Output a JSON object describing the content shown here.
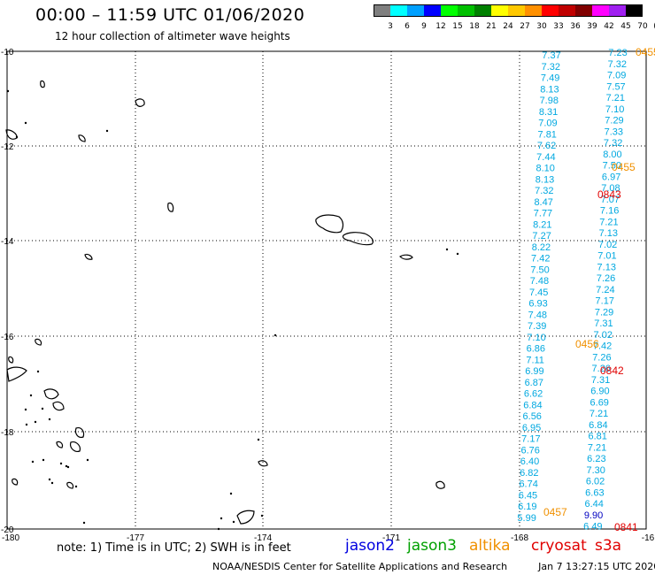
{
  "header": {
    "title": "00:00 – 11:59 UTC 01/06/2020",
    "subtitle": "12 hour collection of altimeter wave heights"
  },
  "color_scale": {
    "swatches": [
      "#7f7f7f",
      "#00ffff",
      "#00a0ff",
      "#0000ff",
      "#00ff00",
      "#00c000",
      "#008000",
      "#ffff00",
      "#ffc800",
      "#ff9000",
      "#ff0000",
      "#c00000",
      "#800000",
      "#ff00ff",
      "#a020f0",
      "#000000"
    ],
    "labels": [
      "3",
      "6",
      "9",
      "12",
      "15",
      "18",
      "21",
      "24",
      "27",
      "30",
      "33",
      "36",
      "39",
      "42",
      "45",
      "70",
      "(ft)"
    ]
  },
  "map": {
    "lon_labels": [
      "-180",
      "-177",
      "-174",
      "-171",
      "-168",
      "-16"
    ],
    "lat_labels": [
      "-10",
      "-12",
      "-14",
      "-16",
      "-18",
      "-20"
    ],
    "colors": {
      "cyan": "#00a8e0",
      "red": "#e00000",
      "orange": "#f09000",
      "green": "#40c040",
      "blue": "#0000c0"
    },
    "tracks": [
      {
        "name": "left",
        "color": "cyan",
        "values": [
          "7.37",
          "7.32",
          "7.49",
          "8.13",
          "7.98",
          "8.31",
          "7.09",
          "7.81",
          "7.62",
          "7.44",
          "8.10",
          "8.13",
          "7.32",
          "8.47",
          "7.77",
          "8.21",
          "7.27",
          "8.22",
          "7.42",
          "7.50",
          "7.48",
          "7.45",
          "6.93",
          "7.48",
          "7.39",
          "7.10",
          "6.86",
          "7.11",
          "6.99",
          "6.87",
          "6.62",
          "6.84",
          "6.56",
          "6.95",
          "7.17",
          "6.76",
          "6.40",
          "6.82",
          "6.74",
          "6.45",
          "6.19",
          "5.99"
        ]
      },
      {
        "name": "right",
        "color": "cyan",
        "values": [
          "7.23",
          "7.32",
          "7.09",
          "7.57",
          "7.21",
          "7.10",
          "7.29",
          "7.33",
          "7.32",
          "8.00",
          "7.50",
          "6.97",
          "7.08",
          "7.07",
          "7.16",
          "7.21",
          "7.13",
          "7.02",
          "7.01",
          "7.13",
          "7.26",
          "7.24",
          "7.17",
          "7.29",
          "7.31",
          "7.02",
          "7.42",
          "7.26",
          "7.26",
          "7.31",
          "6.90",
          "6.69",
          "7.21",
          "6.84",
          "6.81",
          "7.21",
          "6.23",
          "7.30",
          "6.02",
          "6.63",
          "6.44",
          "9.90",
          "6.49"
        ]
      }
    ],
    "time_labels": [
      {
        "text": "0455",
        "color": "orange"
      },
      {
        "text": "0455",
        "color": "orange"
      },
      {
        "text": "0843",
        "color": "red"
      },
      {
        "text": "0456",
        "color": "orange"
      },
      {
        "text": "0842",
        "color": "red"
      },
      {
        "text": "0457",
        "color": "orange"
      },
      {
        "text": "0841",
        "color": "red"
      }
    ]
  },
  "footer": {
    "note": "note: 1) Time is in UTC; 2) SWH is in feet",
    "satellites": [
      {
        "name": "jason2",
        "color": "#0000e0"
      },
      {
        "name": "jason3",
        "color": "#00a000"
      },
      {
        "name": "altika",
        "color": "#f09000"
      },
      {
        "name": "cryosat",
        "color": "#e00000"
      },
      {
        "name": "s3a",
        "color": "#e00000"
      }
    ],
    "credit": "NOAA/NESDIS Center for Satellite Applications and Research",
    "timestamp": "Jan  7 13:27:15 UTC 2020"
  }
}
